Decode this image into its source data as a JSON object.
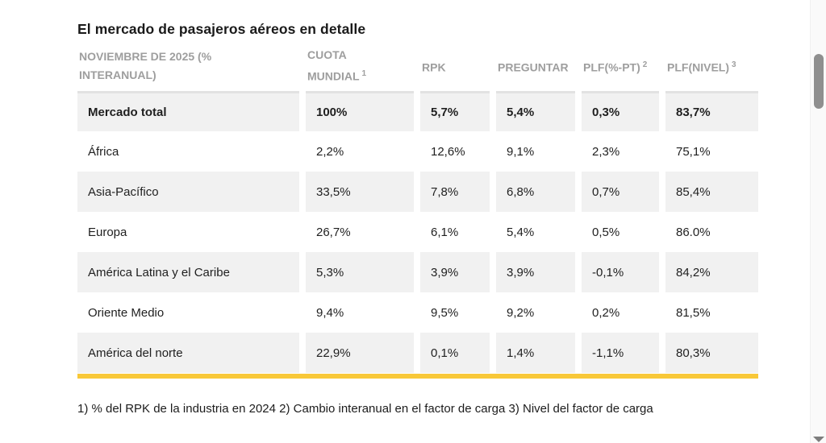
{
  "page": {
    "title": "El mercado de pasajeros aéreos en detalle"
  },
  "table": {
    "headers": [
      {
        "label": "NOVIEMBRE DE 2025 (% INTERANUAL)",
        "sup": ""
      },
      {
        "label": "CUOTA MUNDIAL",
        "sup": "1"
      },
      {
        "label": "RPK",
        "sup": ""
      },
      {
        "label": "PREGUNTAR",
        "sup": ""
      },
      {
        "label": "PLF(%-PT)",
        "sup": "2"
      },
      {
        "label": "PLF(NIVEL)",
        "sup": "3"
      }
    ],
    "rows": [
      {
        "label": "Mercado total",
        "cells": [
          "100%",
          "5,7%",
          "5,4%",
          "0,3%",
          "83,7%"
        ]
      },
      {
        "label": "África",
        "cells": [
          "2,2%",
          "12,6%",
          "9,1%",
          "2,3%",
          "75,1%"
        ]
      },
      {
        "label": "Asia-Pacífico",
        "cells": [
          "33,5%",
          "7,8%",
          "6,8%",
          "0,7%",
          "85,4%"
        ]
      },
      {
        "label": "Europa",
        "cells": [
          "26,7%",
          "6,1%",
          "5,4%",
          "0,5%",
          "86.0%"
        ]
      },
      {
        "label": "América Latina y el Caribe",
        "cells": [
          "5,3%",
          "3,9%",
          "3,9%",
          "-0,1%",
          "84,2%"
        ]
      },
      {
        "label": "Oriente Medio",
        "cells": [
          "9,4%",
          "9,5%",
          "9,2%",
          "0,2%",
          "81,5%"
        ]
      },
      {
        "label": "América del norte",
        "cells": [
          "22,9%",
          "0,1%",
          "1,4%",
          "-1,1%",
          "80,3%"
        ]
      }
    ]
  },
  "footnote": "1) % del RPK de la industria en 2024 2) Cambio interanual en el factor de carga 3) Nivel del factor de carga",
  "colors": {
    "accent_bar": "#f8c838",
    "row_shade": "#f1f1f1",
    "header_text": "#9e9e9e",
    "body_text": "#1f1f1f"
  },
  "chart_data": {
    "type": "table",
    "title": "El mercado de pasajeros aéreos en detalle",
    "columns": [
      "NOVIEMBRE DE 2025 (% INTERANUAL)",
      "CUOTA MUNDIAL 1",
      "RPK",
      "PREGUNTAR",
      "PLF(%-PT) 2",
      "PLF(NIVEL) 3"
    ],
    "rows": [
      [
        "Mercado total",
        "100%",
        "5,7%",
        "5,4%",
        "0,3%",
        "83,7%"
      ],
      [
        "África",
        "2,2%",
        "12,6%",
        "9,1%",
        "2,3%",
        "75,1%"
      ],
      [
        "Asia-Pacífico",
        "33,5%",
        "7,8%",
        "6,8%",
        "0,7%",
        "85,4%"
      ],
      [
        "Europa",
        "26,7%",
        "6,1%",
        "5,4%",
        "0,5%",
        "86.0%"
      ],
      [
        "América Latina y el Caribe",
        "5,3%",
        "3,9%",
        "3,9%",
        "-0,1%",
        "84,2%"
      ],
      [
        "Oriente Medio",
        "9,4%",
        "9,5%",
        "9,2%",
        "0,2%",
        "81,5%"
      ],
      [
        "América del norte",
        "22,9%",
        "0,1%",
        "1,4%",
        "-1,1%",
        "80,3%"
      ]
    ],
    "footnotes": [
      "1) % del RPK de la industria en 2024",
      "2) Cambio interanual en el factor de carga",
      "3) Nivel del factor de carga"
    ]
  }
}
